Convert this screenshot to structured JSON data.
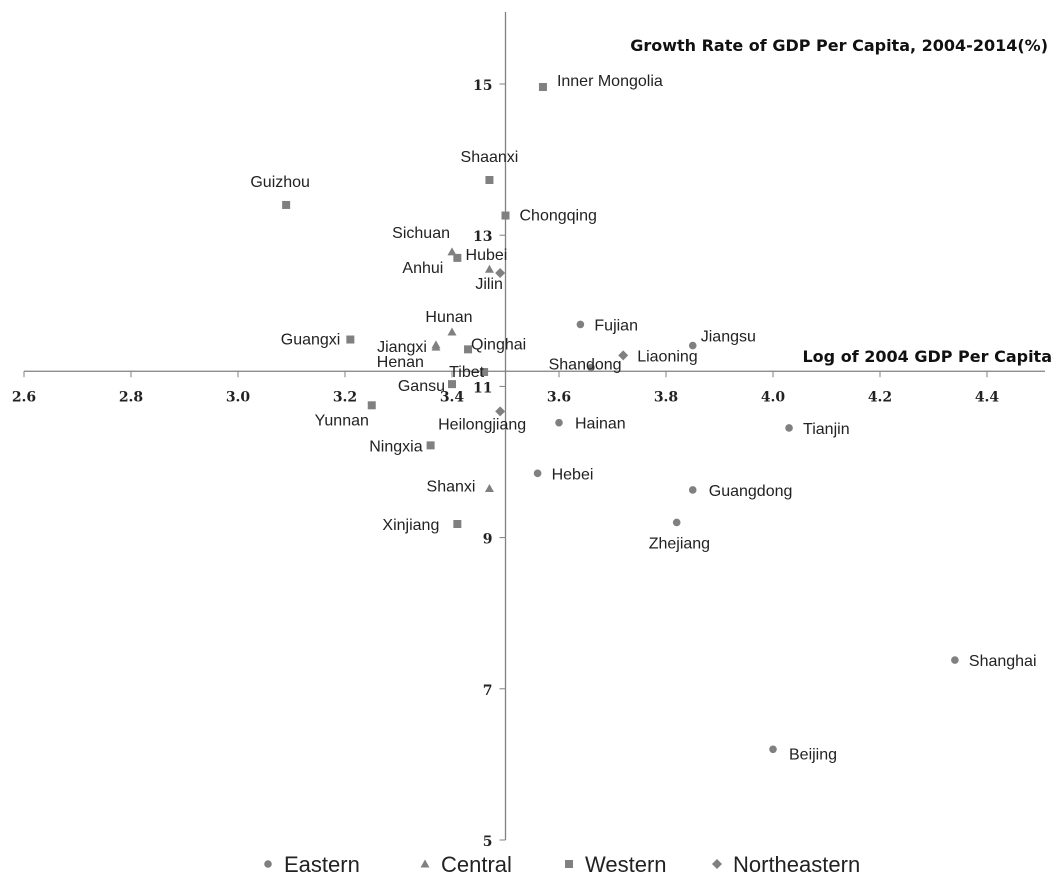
{
  "chart_data": {
    "type": "scatter",
    "xlabel": "Log of 2004 GDP Per Capita",
    "ylabel": "Growth Rate of GDP Per Capita, 2004-2014(%)",
    "xlim": [
      2.6,
      4.5
    ],
    "ylim": [
      5,
      16
    ],
    "crosshair": {
      "x": 3.5,
      "y": 11.2
    },
    "xticks": [
      "2.6",
      "2.8",
      "3.0",
      "3.2",
      "3.4",
      "3.6",
      "3.8",
      "4.0",
      "4.2",
      "4.4"
    ],
    "yticks": [
      "5",
      "7",
      "9",
      "11",
      "13",
      "15"
    ],
    "legend_position": "bottom",
    "grid": false,
    "colors": {
      "marker": "#808080",
      "axis": "#808080",
      "text": "#222222"
    },
    "series": [
      {
        "name": "Eastern",
        "marker": "circle",
        "points": [
          {
            "label": "Fujian",
            "x": 3.64,
            "y": 11.82
          },
          {
            "label": "Jiangsu",
            "x": 3.85,
            "y": 11.54
          },
          {
            "label": "Shandong",
            "x": 3.66,
            "y": 11.25
          },
          {
            "label": "Tianjin",
            "x": 4.03,
            "y": 10.45
          },
          {
            "label": "Hainan",
            "x": 3.6,
            "y": 10.52
          },
          {
            "label": "Hebei",
            "x": 3.56,
            "y": 9.85
          },
          {
            "label": "Guangdong",
            "x": 3.85,
            "y": 9.63
          },
          {
            "label": "Zhejiang",
            "x": 3.82,
            "y": 9.2
          },
          {
            "label": "Shanghai",
            "x": 4.34,
            "y": 7.38
          },
          {
            "label": "Beijing",
            "x": 4.0,
            "y": 6.2
          }
        ]
      },
      {
        "name": "Central",
        "marker": "triangle",
        "points": [
          {
            "label": "Sichuan",
            "x": 3.4,
            "y": 12.78
          },
          {
            "label": "Hubei",
            "x": 3.47,
            "y": 12.55
          },
          {
            "label": "Hunan",
            "x": 3.4,
            "y": 11.72
          },
          {
            "label": "Jiangxi",
            "x": 3.37,
            "y": 11.55
          },
          {
            "label": "Henan",
            "x": 3.37,
            "y": 11.52
          },
          {
            "label": "Shanxi",
            "x": 3.47,
            "y": 9.65
          }
        ]
      },
      {
        "name": "Western",
        "marker": "square",
        "points": [
          {
            "label": "Inner Mongolia",
            "x": 3.57,
            "y": 14.96
          },
          {
            "label": "Shaanxi",
            "x": 3.47,
            "y": 13.73
          },
          {
            "label": "Guizhou",
            "x": 3.09,
            "y": 13.4
          },
          {
            "label": "Chongqing",
            "x": 3.5,
            "y": 13.26
          },
          {
            "label": "Anhui",
            "x": 3.41,
            "y": 12.7
          },
          {
            "label": "Guangxi",
            "x": 3.21,
            "y": 11.62
          },
          {
            "label": "Qinghai",
            "x": 3.43,
            "y": 11.49
          },
          {
            "label": "Tibet",
            "x": 3.46,
            "y": 11.19
          },
          {
            "label": "Gansu",
            "x": 3.4,
            "y": 11.03
          },
          {
            "label": "Yunnan",
            "x": 3.25,
            "y": 10.75
          },
          {
            "label": "Ningxia",
            "x": 3.36,
            "y": 10.22
          },
          {
            "label": "Xinjiang",
            "x": 3.41,
            "y": 9.18
          }
        ]
      },
      {
        "name": "Northeastern",
        "marker": "diamond",
        "points": [
          {
            "label": "Jilin",
            "x": 3.49,
            "y": 12.5
          },
          {
            "label": "Liaoning",
            "x": 3.72,
            "y": 11.41
          },
          {
            "label": "Heilongjiang",
            "x": 3.49,
            "y": 10.67
          }
        ]
      }
    ]
  }
}
